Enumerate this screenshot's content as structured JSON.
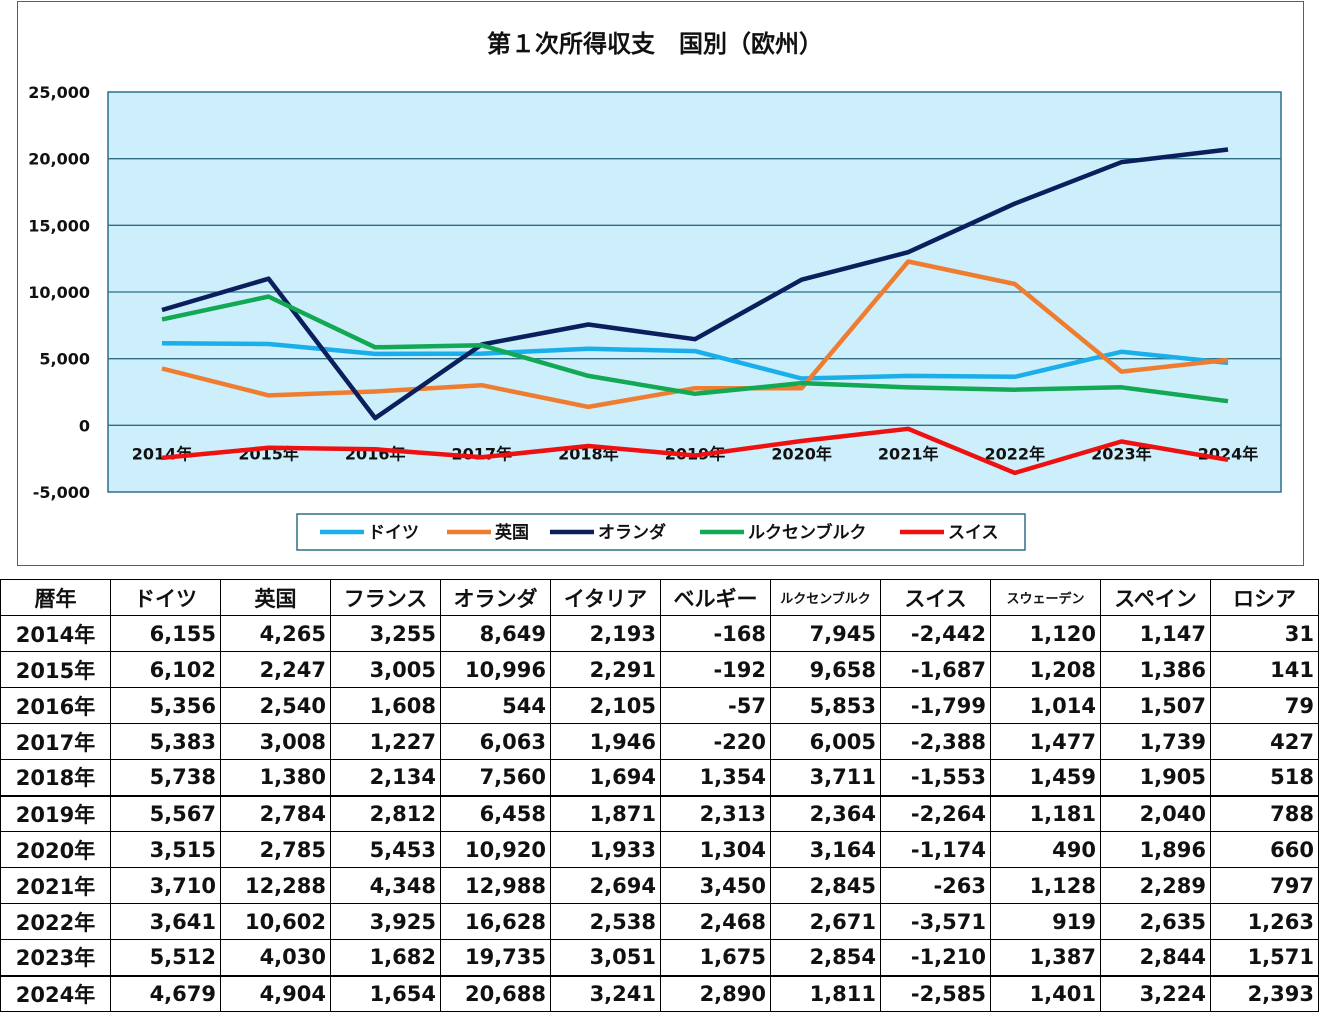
{
  "chart_data": {
    "type": "line",
    "title": "第１次所得収支　国別（欧州）",
    "categories": [
      "2014年",
      "2015年",
      "2016年",
      "2017年",
      "2018年",
      "2019年",
      "2020年",
      "2021年",
      "2022年",
      "2023年",
      "2024年"
    ],
    "ylim": [
      -5000,
      25000
    ],
    "yticks": [
      25000,
      20000,
      15000,
      10000,
      5000,
      0,
      -5000
    ],
    "ytick_labels": [
      "25,000",
      "20,000",
      "15,000",
      "10,000",
      "5,000",
      "0",
      "-5,000"
    ],
    "grid": true,
    "legend_position": "bottom",
    "series": [
      {
        "name": "ドイツ",
        "color": "#1aaeea",
        "values": [
          6155,
          6102,
          5356,
          5383,
          5738,
          5567,
          3515,
          3710,
          3641,
          5512,
          4679
        ]
      },
      {
        "name": "英国",
        "color": "#ee7d31",
        "values": [
          4265,
          2247,
          2540,
          3008,
          1380,
          2784,
          2785,
          12288,
          10602,
          4030,
          4904
        ]
      },
      {
        "name": "オランダ",
        "color": "#0b1f5c",
        "values": [
          8649,
          10996,
          544,
          6063,
          7560,
          6458,
          10920,
          12988,
          16628,
          19735,
          20688
        ]
      },
      {
        "name": "ルクセンブルク",
        "color": "#13a853",
        "values": [
          7945,
          9658,
          5853,
          6005,
          3711,
          2364,
          3164,
          2845,
          2671,
          2854,
          1811
        ]
      },
      {
        "name": "スイス",
        "color": "#ee1111",
        "values": [
          -2442,
          -1687,
          -1799,
          -2388,
          -1553,
          -2264,
          -1174,
          -263,
          -3571,
          -1210,
          -2585
        ]
      }
    ]
  },
  "table": {
    "headers": [
      "暦年",
      "ドイツ",
      "英国",
      "フランス",
      "オランダ",
      "イタリア",
      "ベルギー",
      "ルクセンブルク",
      "スイス",
      "スウェーデン",
      "スペイン",
      "ロシア"
    ],
    "rows": [
      [
        "2014年",
        "6,155",
        "4,265",
        "3,255",
        "8,649",
        "2,193",
        "-168",
        "7,945",
        "-2,442",
        "1,120",
        "1,147",
        "31"
      ],
      [
        "2015年",
        "6,102",
        "2,247",
        "3,005",
        "10,996",
        "2,291",
        "-192",
        "9,658",
        "-1,687",
        "1,208",
        "1,386",
        "141"
      ],
      [
        "2016年",
        "5,356",
        "2,540",
        "1,608",
        "544",
        "2,105",
        "-57",
        "5,853",
        "-1,799",
        "1,014",
        "1,507",
        "79"
      ],
      [
        "2017年",
        "5,383",
        "3,008",
        "1,227",
        "6,063",
        "1,946",
        "-220",
        "6,005",
        "-2,388",
        "1,477",
        "1,739",
        "427"
      ],
      [
        "2018年",
        "5,738",
        "1,380",
        "2,134",
        "7,560",
        "1,694",
        "1,354",
        "3,711",
        "-1,553",
        "1,459",
        "1,905",
        "518"
      ],
      [
        "2019年",
        "5,567",
        "2,784",
        "2,812",
        "6,458",
        "1,871",
        "2,313",
        "2,364",
        "-2,264",
        "1,181",
        "2,040",
        "788"
      ],
      [
        "2020年",
        "3,515",
        "2,785",
        "5,453",
        "10,920",
        "1,933",
        "1,304",
        "3,164",
        "-1,174",
        "490",
        "1,896",
        "660"
      ],
      [
        "2021年",
        "3,710",
        "12,288",
        "4,348",
        "12,988",
        "2,694",
        "3,450",
        "2,845",
        "-263",
        "1,128",
        "2,289",
        "797"
      ],
      [
        "2022年",
        "3,641",
        "10,602",
        "3,925",
        "16,628",
        "2,538",
        "2,468",
        "2,671",
        "-3,571",
        "919",
        "2,635",
        "1,263"
      ],
      [
        "2023年",
        "5,512",
        "4,030",
        "1,682",
        "19,735",
        "3,051",
        "1,675",
        "2,854",
        "-1,210",
        "1,387",
        "2,844",
        "1,571"
      ],
      [
        "2024年",
        "4,679",
        "4,904",
        "1,654",
        "20,688",
        "3,241",
        "2,890",
        "1,811",
        "-2,585",
        "1,401",
        "3,224",
        "2,393"
      ]
    ]
  }
}
